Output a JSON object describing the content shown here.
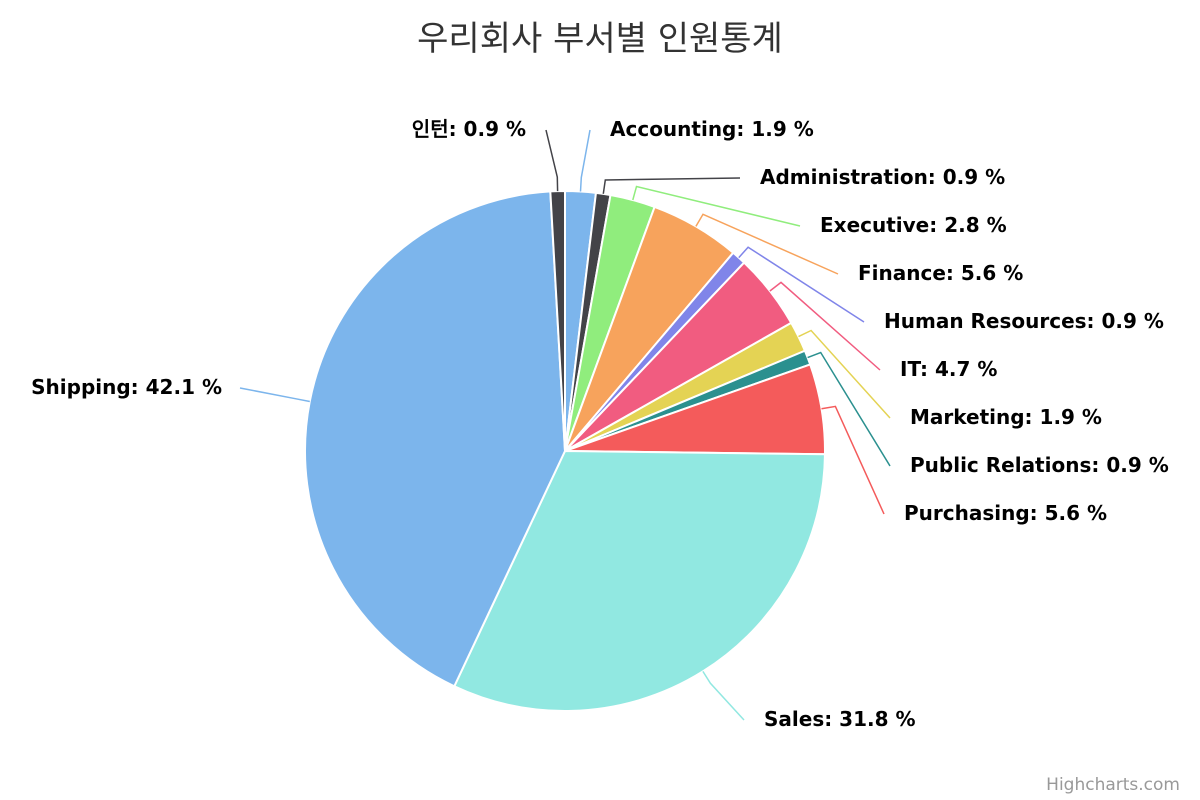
{
  "chart_data": {
    "type": "pie",
    "title": "우리회사 부서별 인원통계",
    "credits": "Highcharts.com",
    "value_suffix": " %",
    "slices": [
      {
        "name": "Accounting",
        "value": 1.9,
        "color": "#7cb5ec"
      },
      {
        "name": "Administration",
        "value": 0.9,
        "color": "#434348"
      },
      {
        "name": "Executive",
        "value": 2.8,
        "color": "#90ed7d"
      },
      {
        "name": "Finance",
        "value": 5.6,
        "color": "#f7a35c"
      },
      {
        "name": "Human Resources",
        "value": 0.9,
        "color": "#8085e9"
      },
      {
        "name": "IT",
        "value": 4.7,
        "color": "#f15c80"
      },
      {
        "name": "Marketing",
        "value": 1.9,
        "color": "#e4d354"
      },
      {
        "name": "Public Relations",
        "value": 0.9,
        "color": "#2b908f"
      },
      {
        "name": "Purchasing",
        "value": 5.6,
        "color": "#f45b5b"
      },
      {
        "name": "Sales",
        "value": 31.8,
        "color": "#91e8e1"
      },
      {
        "name": "Shipping",
        "value": 42.1,
        "color": "#7cb5ec"
      },
      {
        "name": "인턴",
        "value": 0.9,
        "color": "#434348"
      }
    ]
  }
}
